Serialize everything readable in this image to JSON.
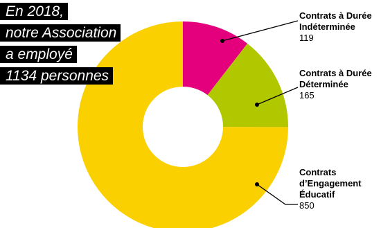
{
  "headline": {
    "lines": [
      "En 2018,",
      "notre Association",
      "a employé",
      "1134 personnes"
    ]
  },
  "colors": {
    "cdi": "#e4007d",
    "cdd": "#b1c800",
    "cee": "#fbd000",
    "headline_bg": "#000000",
    "leader": "#000000"
  },
  "chart_data": {
    "type": "pie",
    "variant": "donut",
    "title": "",
    "total": 1134,
    "categories": [
      "Contrats à Durée Indéterminée",
      "Contrats à Durée Déterminée",
      "Contrats d’Engagement Éducatif"
    ],
    "values": [
      119,
      165,
      850
    ],
    "slices": [
      {
        "label_lines": [
          "Contrats à Durée",
          "Indéterminée"
        ],
        "value": "119",
        "color": "#e4007d"
      },
      {
        "label_lines": [
          "Contrats à Durée",
          "Déterminée"
        ],
        "value": "165",
        "color": "#b1c800"
      },
      {
        "label_lines": [
          "Contrats",
          "d’Engagement",
          "Éducatif"
        ],
        "value": "850",
        "color": "#fbd000"
      }
    ],
    "start_angle_deg": 0,
    "direction": "clockwise",
    "legend": "right"
  }
}
